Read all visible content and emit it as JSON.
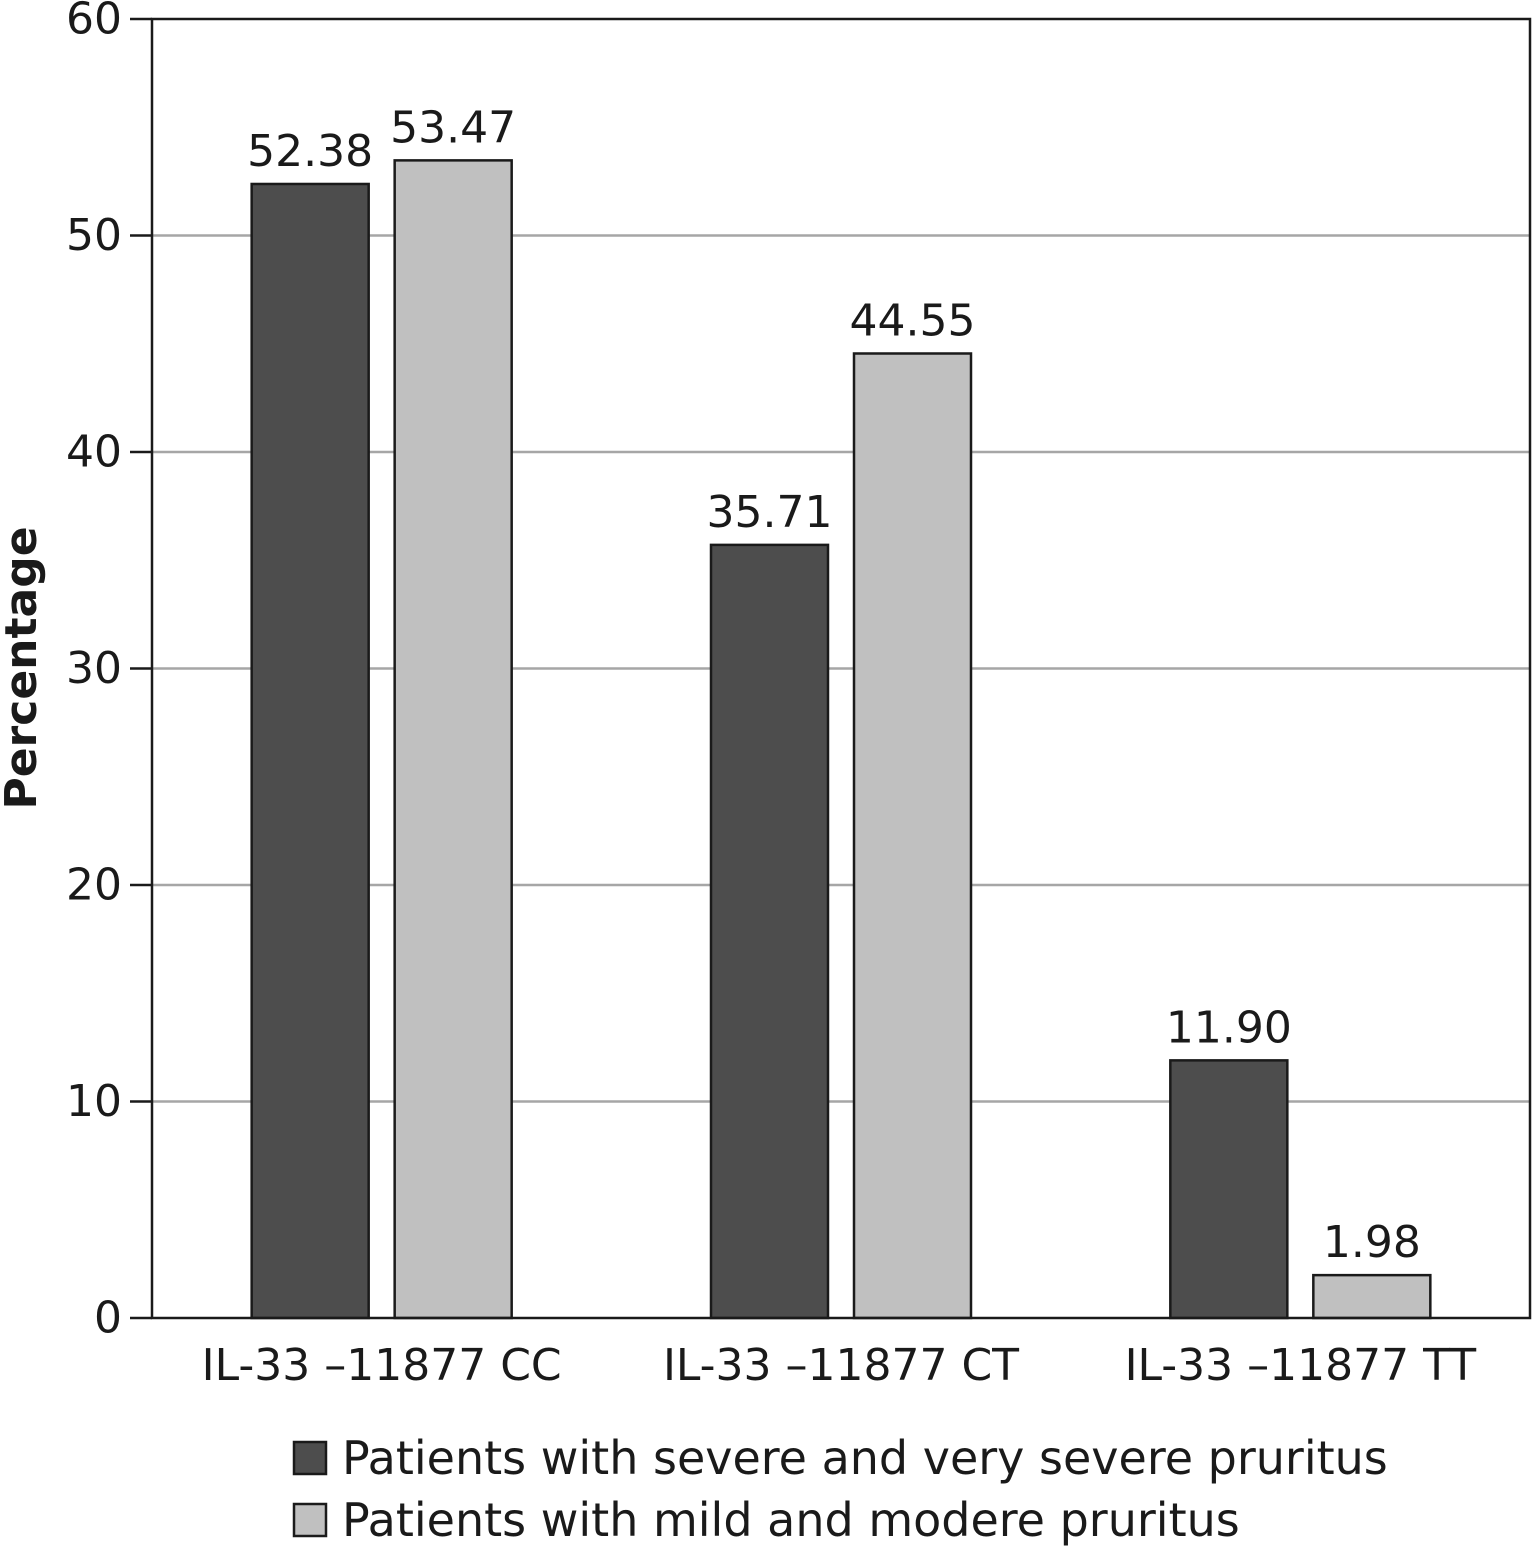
{
  "chart_data": {
    "type": "bar",
    "categories": [
      "IL-33 –11877 CC",
      "IL-33 –11877 CT",
      "IL-33 –11877 TT"
    ],
    "series": [
      {
        "name": "Patients with severe and very severe pruritus",
        "values": [
          52.38,
          35.71,
          11.9
        ],
        "labels": [
          "52.38",
          "35.71",
          "11.90"
        ],
        "color": "#4d4d4d"
      },
      {
        "name": "Patients with mild and modere pruritus",
        "values": [
          53.47,
          44.55,
          1.98
        ],
        "labels": [
          "53.47",
          "44.55",
          "1.98"
        ],
        "color": "#c0c0c0"
      }
    ],
    "title": "",
    "xlabel": "",
    "ylabel": "Percentage",
    "ylim": [
      0,
      60
    ],
    "yticks": [
      0,
      10,
      20,
      30,
      40,
      50,
      60
    ],
    "grid": true,
    "legend_position": "bottom"
  }
}
